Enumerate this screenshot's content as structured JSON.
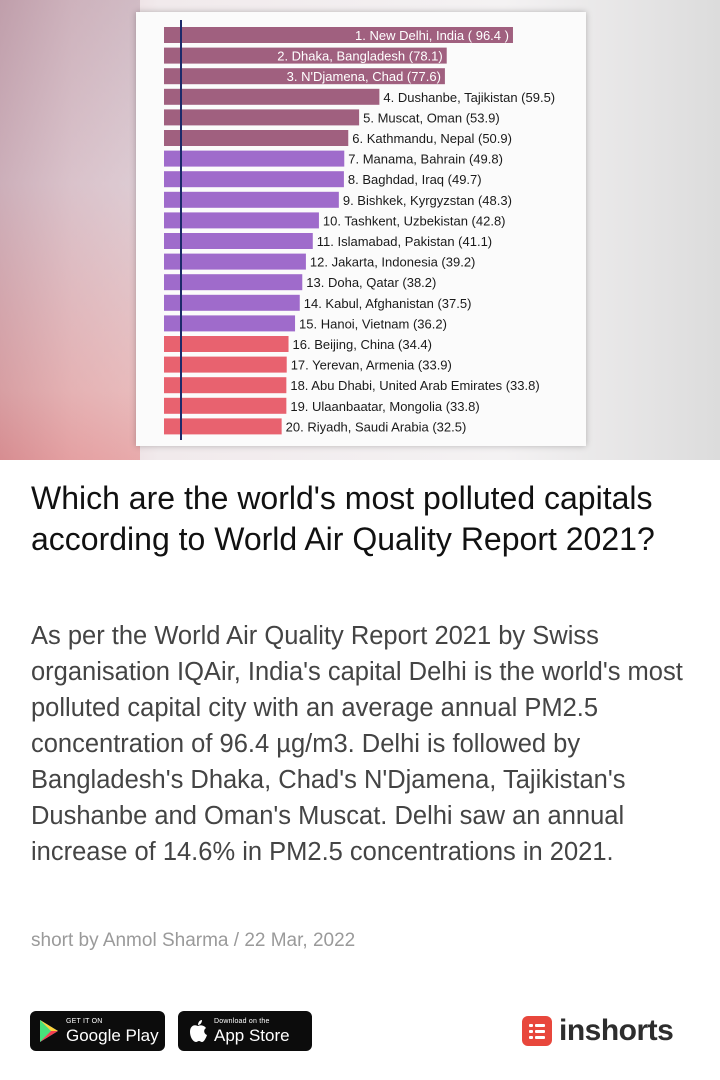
{
  "chart_data": {
    "type": "bar",
    "orientation": "horizontal",
    "categories": [
      "1. New Delhi, India ( 96.4 )",
      "2. Dhaka, Bangladesh (78.1)",
      "3. N'Djamena, Chad  (77.6)",
      "4. Dushanbe, Tajikistan (59.5)",
      "5. Muscat, Oman (53.9)",
      "6. Kathmandu, Nepal (50.9)",
      "7. Manama, Bahrain (49.8)",
      "8. Baghdad, Iraq (49.7)",
      "9. Bishkek, Kyrgyzstan (48.3)",
      "10. Tashkent, Uzbekistan (42.8)",
      "11. Islamabad, Pakistan (41.1)",
      "12. Jakarta, Indonesia (39.2)",
      "13. Doha, Qatar (38.2)",
      "14. Kabul, Afghanistan (37.5)",
      "15. Hanoi, Vietnam (36.2)",
      "16. Beijing, China (34.4)",
      "17. Yerevan, Armenia (33.9)",
      "18. Abu Dhabi, United Arab Emirates (33.8)",
      "19. Ulaanbaatar, Mongolia (33.8)",
      "20. Riyadh, Saudi Arabia (32.5)"
    ],
    "values": [
      96.4,
      78.1,
      77.6,
      59.5,
      53.9,
      50.9,
      49.8,
      49.7,
      48.3,
      42.8,
      41.1,
      39.2,
      38.2,
      37.5,
      36.2,
      34.4,
      33.9,
      33.8,
      33.8,
      32.5
    ],
    "label_inside": [
      true,
      true,
      true,
      false,
      false,
      false,
      false,
      false,
      false,
      false,
      false,
      false,
      false,
      false,
      false,
      false,
      false,
      false,
      false,
      false
    ],
    "colors": [
      "#a0607f",
      "#a0607f",
      "#a0607f",
      "#a0607f",
      "#a0607f",
      "#a0607f",
      "#9f6bcb",
      "#9f6bcb",
      "#9f6bcb",
      "#9f6bcb",
      "#9f6bcb",
      "#9f6bcb",
      "#9f6bcb",
      "#9f6bcb",
      "#9f6bcb",
      "#e8626f",
      "#e8626f",
      "#e8626f",
      "#e8626f",
      "#e8626f"
    ],
    "xlim": [
      0,
      100
    ],
    "grid": false
  },
  "article": {
    "headline": "Which are the world's most polluted capitals according to World Air Quality Report 2021?",
    "body": "As per the World Air Quality Report 2021 by Swiss organisation IQAir, India's capital Delhi is the world's most polluted capital city with an average annual PM2.5 concentration of 96.4 µg/m3. Delhi is followed by Bangladesh's Dhaka, Chad's N'Djamena, Tajikistan's Dushanbe and Oman's Muscat. Delhi saw an annual increase of 14.6% in PM2.5 concentrations in 2021.",
    "byline": "short by Anmol Sharma / 22 Mar, 2022"
  },
  "footer": {
    "google_play": {
      "small": "GET IT ON",
      "big": "Google Play",
      "icon": "play-store-icon"
    },
    "app_store": {
      "small": "Download on the",
      "big": "App Store",
      "icon": "apple-icon"
    },
    "brand": {
      "name": "inshorts",
      "icon": "inshorts-logo-icon",
      "color": "#e8473c"
    }
  }
}
